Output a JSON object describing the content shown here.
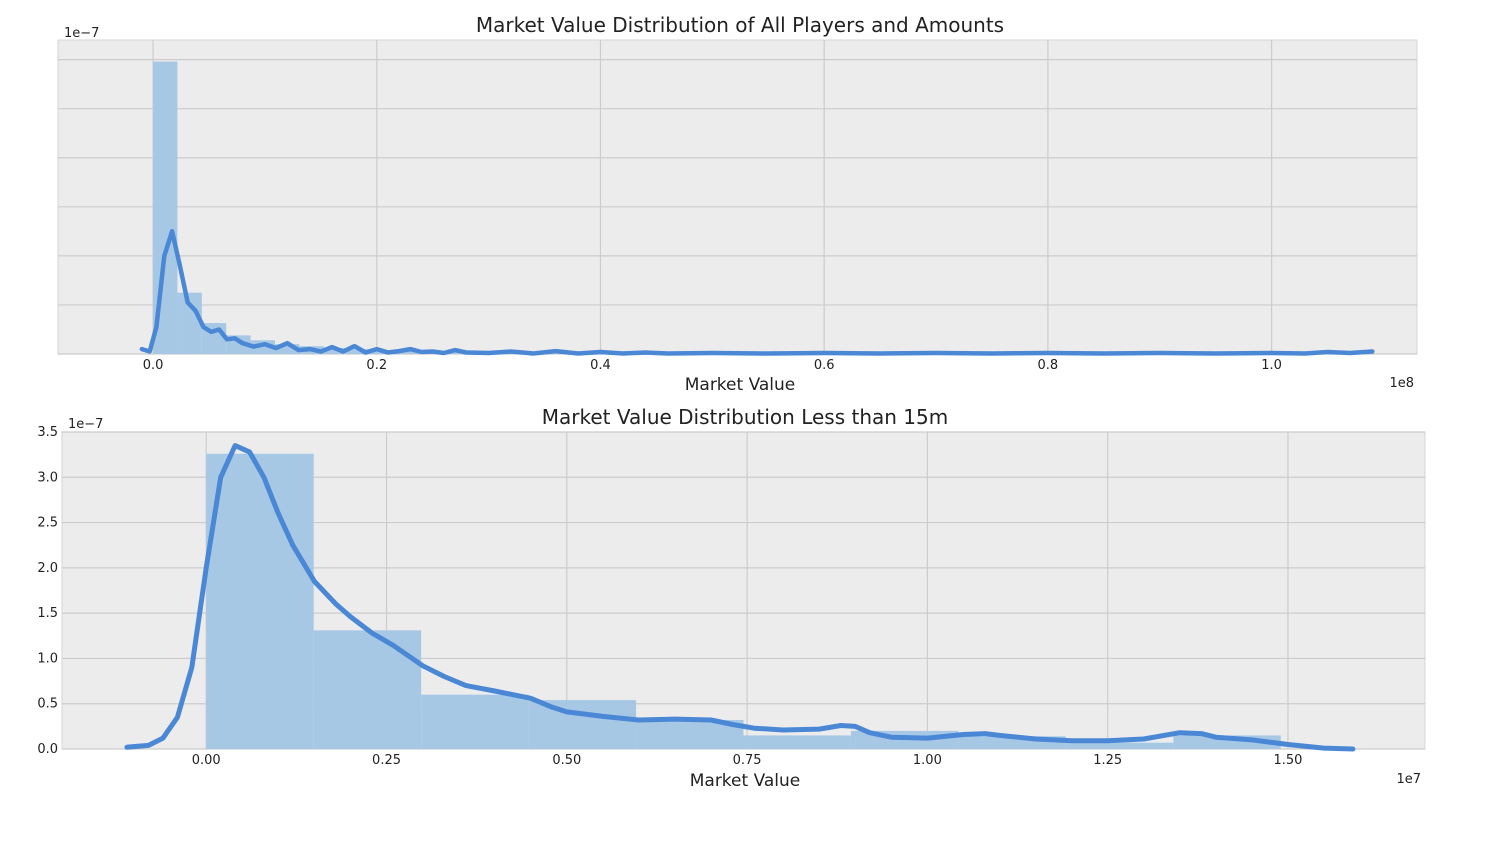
{
  "colors": {
    "plot_background": "#ececec",
    "grid": "#cccccc",
    "hist_fill": "#a3c6e5",
    "kde_line": "#4a88d6"
  },
  "chart_data": [
    {
      "type": "histogram+kde",
      "title": "Market Value Distribution of All Players and Amounts",
      "xlabel": "Market Value",
      "ylabel": "",
      "x_offset_label": "1e8",
      "y_offset_label": "1e−7",
      "xlim": [
        -0.085,
        1.13
      ],
      "ylim": [
        0,
        6.4
      ],
      "xticks": [
        0.0,
        0.2,
        0.4,
        0.6,
        0.8,
        1.0
      ],
      "xtick_labels": [
        "0.0",
        "0.2",
        "0.4",
        "0.6",
        "0.8",
        "1.0"
      ],
      "yticks": [
        0,
        1,
        2,
        3,
        4,
        5,
        6
      ],
      "ytick_labels": [
        "",
        "",
        "",
        "",
        "",
        "",
        ""
      ],
      "grid": true,
      "histogram": {
        "bin_width": 0.0218,
        "bin_starts": [
          0.0,
          0.0218,
          0.0436,
          0.0654,
          0.0872,
          0.109,
          0.1308,
          0.1526,
          0.1744,
          0.1962,
          0.218,
          0.2398,
          0.2616,
          0.2834,
          0.3052,
          0.327
        ],
        "values": [
          5.96,
          1.25,
          0.63,
          0.38,
          0.28,
          0.2,
          0.16,
          0.12,
          0.1,
          0.08,
          0.06,
          0.05,
          0.05,
          0.04,
          0.03,
          0.03
        ]
      },
      "kde": {
        "x": [
          -0.01,
          -0.003,
          0.003,
          0.01,
          0.017,
          0.024,
          0.031,
          0.038,
          0.045,
          0.052,
          0.059,
          0.066,
          0.073,
          0.08,
          0.09,
          0.1,
          0.11,
          0.12,
          0.13,
          0.14,
          0.15,
          0.16,
          0.17,
          0.18,
          0.19,
          0.2,
          0.21,
          0.22,
          0.23,
          0.24,
          0.25,
          0.26,
          0.27,
          0.28,
          0.3,
          0.32,
          0.34,
          0.36,
          0.38,
          0.4,
          0.42,
          0.44,
          0.46,
          0.5,
          0.55,
          0.6,
          0.65,
          0.7,
          0.75,
          0.8,
          0.85,
          0.9,
          0.95,
          1.0,
          1.03,
          1.05,
          1.07,
          1.09
        ],
        "y": [
          0.1,
          0.05,
          0.55,
          2.0,
          2.5,
          1.8,
          1.05,
          0.88,
          0.55,
          0.45,
          0.5,
          0.3,
          0.32,
          0.22,
          0.15,
          0.2,
          0.12,
          0.22,
          0.08,
          0.1,
          0.05,
          0.14,
          0.05,
          0.16,
          0.03,
          0.1,
          0.03,
          0.06,
          0.1,
          0.04,
          0.05,
          0.02,
          0.08,
          0.03,
          0.02,
          0.05,
          0.01,
          0.06,
          0.01,
          0.04,
          0.01,
          0.03,
          0.01,
          0.02,
          0.01,
          0.02,
          0.01,
          0.02,
          0.01,
          0.02,
          0.01,
          0.02,
          0.01,
          0.02,
          0.01,
          0.04,
          0.02,
          0.05
        ]
      }
    },
    {
      "type": "histogram+kde",
      "title": "Market Value Distribution Less than 15m",
      "xlabel": "Market Value",
      "ylabel": "",
      "x_offset_label": "1e7",
      "y_offset_label": "1e−7",
      "xlim": [
        -0.2,
        1.69
      ],
      "ylim": [
        0,
        3.5
      ],
      "xticks": [
        0.0,
        0.25,
        0.5,
        0.75,
        1.0,
        1.25,
        1.5
      ],
      "xtick_labels": [
        "0.00",
        "0.25",
        "0.50",
        "0.75",
        "1.00",
        "1.25",
        "1.50"
      ],
      "yticks": [
        0,
        0.5,
        1.0,
        1.5,
        2.0,
        2.5,
        3.0,
        3.5
      ],
      "ytick_labels": [
        "0.0",
        "0.5",
        "1.0",
        "1.5",
        "2.0",
        "2.5",
        "3.0",
        "3.5"
      ],
      "grid": true,
      "histogram": {
        "bin_width": 0.149,
        "bin_starts": [
          0.0,
          0.149,
          0.298,
          0.447,
          0.596,
          0.745,
          0.894,
          1.043,
          1.192,
          1.341
        ],
        "values": [
          3.26,
          1.31,
          0.6,
          0.54,
          0.32,
          0.15,
          0.2,
          0.14,
          0.07,
          0.15
        ]
      },
      "kde": {
        "x": [
          -0.11,
          -0.08,
          -0.06,
          -0.04,
          -0.02,
          0.0,
          0.02,
          0.04,
          0.06,
          0.08,
          0.1,
          0.12,
          0.15,
          0.18,
          0.2,
          0.23,
          0.26,
          0.28,
          0.3,
          0.33,
          0.36,
          0.4,
          0.45,
          0.48,
          0.5,
          0.55,
          0.6,
          0.65,
          0.7,
          0.73,
          0.76,
          0.8,
          0.85,
          0.88,
          0.9,
          0.92,
          0.95,
          1.0,
          1.05,
          1.08,
          1.1,
          1.15,
          1.2,
          1.25,
          1.3,
          1.35,
          1.38,
          1.4,
          1.45,
          1.5,
          1.55,
          1.59
        ],
        "y": [
          0.02,
          0.04,
          0.12,
          0.35,
          0.9,
          2.0,
          3.0,
          3.35,
          3.28,
          3.0,
          2.6,
          2.25,
          1.85,
          1.6,
          1.46,
          1.28,
          1.14,
          1.03,
          0.92,
          0.8,
          0.7,
          0.64,
          0.56,
          0.46,
          0.41,
          0.36,
          0.32,
          0.33,
          0.32,
          0.27,
          0.23,
          0.21,
          0.22,
          0.26,
          0.25,
          0.18,
          0.13,
          0.12,
          0.16,
          0.17,
          0.15,
          0.11,
          0.09,
          0.09,
          0.11,
          0.18,
          0.17,
          0.13,
          0.1,
          0.05,
          0.01,
          0.0
        ]
      }
    }
  ]
}
